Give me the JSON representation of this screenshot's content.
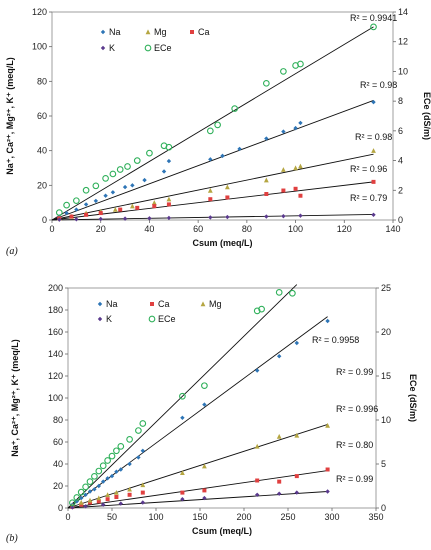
{
  "chart_data": [
    {
      "type": "scatter",
      "panel_label": "(a)",
      "xlabel": "Csum (meq/L)",
      "ylabel": "Na⁺, Ca²⁺, Mg²⁺, K⁺ (meq/L)",
      "y2label": "ECe (dS/m)",
      "xlim": [
        0,
        140
      ],
      "ylim": [
        0,
        120
      ],
      "y2lim": [
        0,
        14
      ],
      "xticks": [
        "0",
        "20",
        "40",
        "60",
        "80",
        "100",
        "120",
        "140"
      ],
      "yticks": [
        "0",
        "20",
        "40",
        "60",
        "80",
        "100",
        "120"
      ],
      "y2ticks": [
        "0",
        "2",
        "4",
        "6",
        "8",
        "10",
        "12",
        "14"
      ],
      "legend_position": "top-left",
      "series": [
        {
          "name": "Na",
          "axis": "left",
          "color": "#2e75b6",
          "marker": "diamond",
          "x": [
            3,
            6,
            10,
            14,
            18,
            22,
            25,
            30,
            33,
            38,
            46,
            48,
            65,
            70,
            77,
            88,
            95,
            100,
            102,
            132
          ],
          "y": [
            2,
            4,
            6,
            9,
            11,
            14,
            16,
            19,
            20,
            23,
            28,
            34,
            35,
            37,
            41,
            47,
            51,
            53,
            56,
            68
          ],
          "fit_y_at_xmax": 69,
          "r2": "R² = 0.98"
        },
        {
          "name": "Mg",
          "axis": "left",
          "color": "#b5a642",
          "marker": "triangle",
          "x": [
            3,
            8,
            14,
            20,
            26,
            33,
            42,
            48,
            65,
            72,
            88,
            95,
            100,
            102,
            132
          ],
          "y": [
            1,
            2,
            4,
            5,
            6,
            8,
            10,
            12,
            17,
            19,
            23,
            29,
            30,
            31,
            40
          ],
          "fit_y_at_xmax": 38,
          "r2": "R² = 0.98"
        },
        {
          "name": "Ca",
          "axis": "left",
          "color": "#e04040",
          "marker": "square",
          "x": [
            3,
            8,
            14,
            20,
            28,
            35,
            42,
            48,
            65,
            72,
            88,
            95,
            100,
            102,
            132
          ],
          "y": [
            1,
            2,
            3,
            4,
            6,
            7,
            8,
            9,
            12,
            13,
            15,
            17,
            18,
            14,
            22
          ],
          "fit_y_at_xmax": 22,
          "r2": "R² = 0.96"
        },
        {
          "name": "K",
          "axis": "left",
          "color": "#5b3a8e",
          "marker": "diamond",
          "x": [
            3,
            10,
            20,
            30,
            40,
            48,
            65,
            72,
            88,
            95,
            102,
            132
          ],
          "y": [
            0.2,
            0.4,
            0.6,
            0.8,
            1.0,
            1.2,
            1.5,
            1.7,
            2.0,
            2.2,
            2.5,
            3.0
          ],
          "fit_y_at_xmax": 3.2,
          "r2": "R² = 0.79"
        },
        {
          "name": "ECe",
          "axis": "right",
          "color": "#2fb05a",
          "marker": "circle",
          "x": [
            3,
            6,
            10,
            14,
            18,
            22,
            25,
            28,
            31,
            35,
            40,
            46,
            48,
            65,
            68,
            75,
            88,
            95,
            100,
            102,
            132
          ],
          "y": [
            0.5,
            1.0,
            1.3,
            2.0,
            2.3,
            2.8,
            3.1,
            3.4,
            3.6,
            4.0,
            4.5,
            5.0,
            4.9,
            6.0,
            6.4,
            7.5,
            9.2,
            10.0,
            10.4,
            10.5,
            13.0
          ],
          "fit_y_at_xmax": 13.0,
          "r2": "R² = 0.9941"
        }
      ]
    },
    {
      "type": "scatter",
      "panel_label": "(b)",
      "xlabel": "Csum (meq/L)",
      "ylabel": "Na⁺, Ca²⁺, Mg²⁺, K⁺ (meq/L)",
      "y2label": "ECe (dS/m)",
      "xlim": [
        0,
        350
      ],
      "ylim": [
        0,
        200
      ],
      "y2lim": [
        0,
        25
      ],
      "xticks": [
        "0",
        "50",
        "100",
        "150",
        "200",
        "250",
        "300",
        "350"
      ],
      "yticks": [
        "0",
        "20",
        "40",
        "60",
        "80",
        "100",
        "120",
        "140",
        "160",
        "180",
        "200"
      ],
      "y2ticks": [
        "0",
        "5",
        "10",
        "15",
        "20",
        "25"
      ],
      "legend_position": "top-left",
      "series": [
        {
          "name": "Na",
          "axis": "left",
          "color": "#2e75b6",
          "marker": "diamond",
          "x": [
            5,
            10,
            15,
            20,
            25,
            30,
            35,
            40,
            45,
            50,
            55,
            60,
            70,
            80,
            85,
            130,
            155,
            215,
            240,
            260,
            295
          ],
          "y": [
            3,
            6,
            9,
            12,
            15,
            17,
            20,
            24,
            27,
            29,
            33,
            35,
            40,
            46,
            52,
            82,
            94,
            125,
            138,
            150,
            170
          ],
          "fit_y_at_xmax": 174,
          "r2": "R² = 0.99"
        },
        {
          "name": "Ca",
          "axis": "left",
          "color": "#e04040",
          "marker": "square",
          "x": [
            5,
            15,
            25,
            35,
            45,
            55,
            70,
            85,
            130,
            155,
            215,
            240,
            260,
            295
          ],
          "y": [
            1,
            3,
            5,
            6,
            8,
            10,
            12,
            14,
            14,
            16,
            25,
            24,
            29,
            35
          ],
          "fit_y_at_xmax": 34,
          "r2": "R² = 0.80"
        },
        {
          "name": "Mg",
          "axis": "left",
          "color": "#b5a642",
          "marker": "triangle",
          "x": [
            5,
            15,
            25,
            35,
            45,
            55,
            70,
            85,
            130,
            155,
            215,
            240,
            260,
            295
          ],
          "y": [
            2,
            5,
            7,
            9,
            12,
            14,
            17,
            21,
            32,
            38,
            56,
            65,
            66,
            75
          ],
          "fit_y_at_xmax": 76,
          "r2": "R² = 0.996"
        },
        {
          "name": "K",
          "axis": "left",
          "color": "#5b3a8e",
          "marker": "diamond",
          "x": [
            5,
            20,
            40,
            60,
            85,
            130,
            155,
            215,
            240,
            260,
            295
          ],
          "y": [
            0.5,
            1.5,
            3,
            4,
            5,
            8,
            9,
            12,
            13,
            14,
            15
          ],
          "fit_y_at_xmax": 15,
          "r2": "R² = 0.99"
        },
        {
          "name": "ECe",
          "axis": "right",
          "color": "#2fb05a",
          "marker": "circle",
          "x": [
            5,
            10,
            15,
            20,
            25,
            30,
            35,
            40,
            45,
            50,
            55,
            60,
            70,
            80,
            85,
            130,
            155,
            215,
            220,
            240,
            255
          ],
          "y": [
            0.6,
            1.2,
            1.8,
            2.4,
            3.0,
            3.6,
            4.2,
            4.8,
            5.4,
            5.9,
            6.5,
            7.0,
            7.8,
            8.8,
            9.6,
            12.7,
            13.9,
            22.4,
            22.6,
            24.5,
            24.4
          ],
          "fit_y_at_xmax": 24.9,
          "fit_x_end": 260,
          "r2": "R² = 0.9958"
        }
      ]
    }
  ]
}
